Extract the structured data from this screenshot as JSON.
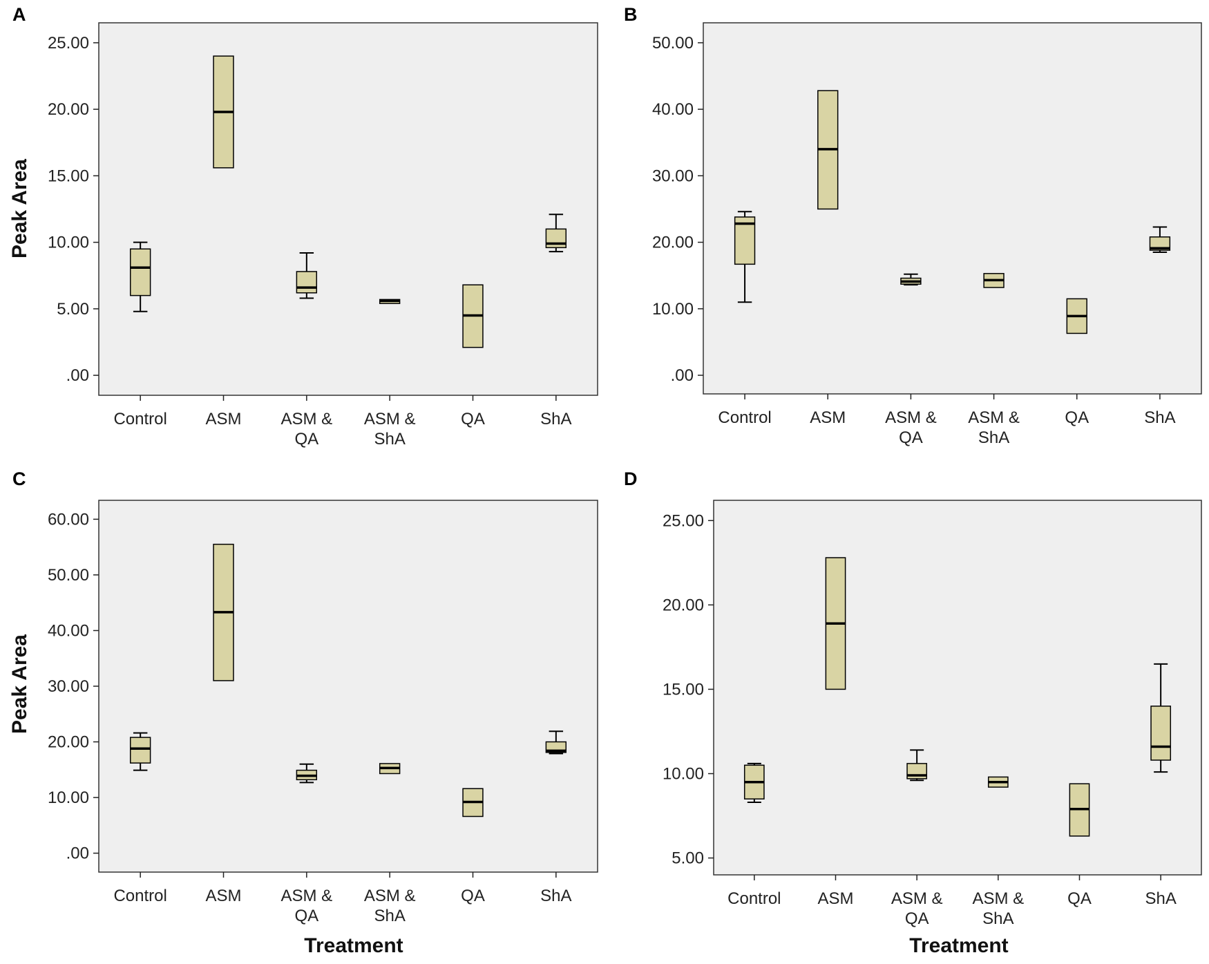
{
  "figure": {
    "colors": {
      "plot_bg": "#efefef",
      "box_fill": "#d9d4a4",
      "stroke": "#000000"
    }
  },
  "chart_data": [
    {
      "panel": "A",
      "type": "boxplot",
      "ylabel": "Peak Area",
      "xlabel": "",
      "ylim": [
        -1.5,
        26.5
      ],
      "ticks": [
        0,
        5,
        10,
        15,
        20,
        25
      ],
      "tick_labels": [
        ".00",
        "5.00",
        "10.00",
        "15.00",
        "20.00",
        "25.00"
      ],
      "categories": [
        "Control",
        "ASM",
        "ASM & QA",
        "ASM & ShA",
        "QA",
        "ShA"
      ],
      "category_lines": [
        [
          "Control"
        ],
        [
          "ASM"
        ],
        [
          "ASM &",
          "QA"
        ],
        [
          "ASM &",
          "ShA"
        ],
        [
          "QA"
        ],
        [
          "ShA"
        ]
      ],
      "boxes": [
        {
          "min": 4.8,
          "q1": 6.0,
          "median": 8.1,
          "q3": 9.5,
          "max": 10.0
        },
        {
          "min": 15.6,
          "q1": 15.6,
          "median": 19.8,
          "q3": 24.0,
          "max": 24.0
        },
        {
          "min": 5.8,
          "q1": 6.2,
          "median": 6.6,
          "q3": 7.8,
          "max": 9.2
        },
        {
          "min": 5.4,
          "q1": 5.4,
          "median": 5.6,
          "q3": 5.7,
          "max": 5.7
        },
        {
          "min": 2.1,
          "q1": 2.1,
          "median": 4.5,
          "q3": 6.8,
          "max": 6.8
        },
        {
          "min": 9.3,
          "q1": 9.6,
          "median": 9.9,
          "q3": 11.0,
          "max": 12.1
        }
      ]
    },
    {
      "panel": "B",
      "type": "boxplot",
      "ylabel": "",
      "xlabel": "",
      "ylim": [
        -2.8,
        53.0
      ],
      "ticks": [
        0,
        10,
        20,
        30,
        40,
        50
      ],
      "tick_labels": [
        ".00",
        "10.00",
        "20.00",
        "30.00",
        "40.00",
        "50.00"
      ],
      "categories": [
        "Control",
        "ASM",
        "ASM & QA",
        "ASM & ShA",
        "QA",
        "ShA"
      ],
      "category_lines": [
        [
          "Control"
        ],
        [
          "ASM"
        ],
        [
          "ASM &",
          "QA"
        ],
        [
          "ASM &",
          "ShA"
        ],
        [
          "QA"
        ],
        [
          "ShA"
        ]
      ],
      "boxes": [
        {
          "min": 11.0,
          "q1": 16.7,
          "median": 22.8,
          "q3": 23.8,
          "max": 24.6
        },
        {
          "min": 25.0,
          "q1": 25.0,
          "median": 34.0,
          "q3": 42.8,
          "max": 42.8
        },
        {
          "min": 13.6,
          "q1": 13.7,
          "median": 14.1,
          "q3": 14.6,
          "max": 15.2
        },
        {
          "min": 13.2,
          "q1": 13.2,
          "median": 14.3,
          "q3": 15.3,
          "max": 15.3
        },
        {
          "min": 6.3,
          "q1": 6.3,
          "median": 8.9,
          "q3": 11.5,
          "max": 11.5
        },
        {
          "min": 18.5,
          "q1": 18.8,
          "median": 19.1,
          "q3": 20.8,
          "max": 22.3
        }
      ]
    },
    {
      "panel": "C",
      "type": "boxplot",
      "ylabel": "Peak Area",
      "xlabel": "Treatment",
      "ylim": [
        -3.4,
        63.4
      ],
      "ticks": [
        0,
        10,
        20,
        30,
        40,
        50,
        60
      ],
      "tick_labels": [
        ".00",
        "10.00",
        "20.00",
        "30.00",
        "40.00",
        "50.00",
        "60.00"
      ],
      "categories": [
        "Control",
        "ASM",
        "ASM & QA",
        "ASM & ShA",
        "QA",
        "ShA"
      ],
      "category_lines": [
        [
          "Control"
        ],
        [
          "ASM"
        ],
        [
          "ASM &",
          "QA"
        ],
        [
          "ASM &",
          "ShA"
        ],
        [
          "QA"
        ],
        [
          "ShA"
        ]
      ],
      "boxes": [
        {
          "min": 14.9,
          "q1": 16.2,
          "median": 18.8,
          "q3": 20.8,
          "max": 21.6
        },
        {
          "min": 31.0,
          "q1": 31.0,
          "median": 43.3,
          "q3": 55.5,
          "max": 55.5
        },
        {
          "min": 12.7,
          "q1": 13.2,
          "median": 13.9,
          "q3": 14.9,
          "max": 16.0
        },
        {
          "min": 14.3,
          "q1": 14.3,
          "median": 15.3,
          "q3": 16.1,
          "max": 16.1
        },
        {
          "min": 6.6,
          "q1": 6.6,
          "median": 9.2,
          "q3": 11.6,
          "max": 11.6
        },
        {
          "min": 17.9,
          "q1": 18.1,
          "median": 18.4,
          "q3": 20.0,
          "max": 21.9
        }
      ]
    },
    {
      "panel": "D",
      "type": "boxplot",
      "ylabel": "",
      "xlabel": "Treatment",
      "ylim": [
        4.0,
        26.2
      ],
      "ticks": [
        5,
        10,
        15,
        20,
        25
      ],
      "tick_labels": [
        "5.00",
        "10.00",
        "15.00",
        "20.00",
        "25.00"
      ],
      "categories": [
        "Control",
        "ASM",
        "ASM & QA",
        "ASM & ShA",
        "QA",
        "ShA"
      ],
      "category_lines": [
        [
          "Control"
        ],
        [
          "ASM"
        ],
        [
          "ASM &",
          "QA"
        ],
        [
          "ASM &",
          "ShA"
        ],
        [
          "QA"
        ],
        [
          "ShA"
        ]
      ],
      "boxes": [
        {
          "min": 8.3,
          "q1": 8.5,
          "median": 9.5,
          "q3": 10.5,
          "max": 10.6
        },
        {
          "min": 15.0,
          "q1": 15.0,
          "median": 18.9,
          "q3": 22.8,
          "max": 22.8
        },
        {
          "min": 9.6,
          "q1": 9.7,
          "median": 9.9,
          "q3": 10.6,
          "max": 11.4
        },
        {
          "min": 9.2,
          "q1": 9.2,
          "median": 9.5,
          "q3": 9.8,
          "max": 9.8
        },
        {
          "min": 6.3,
          "q1": 6.3,
          "median": 7.9,
          "q3": 9.4,
          "max": 9.4
        },
        {
          "min": 10.1,
          "q1": 10.8,
          "median": 11.6,
          "q3": 14.0,
          "max": 16.5
        }
      ]
    }
  ]
}
